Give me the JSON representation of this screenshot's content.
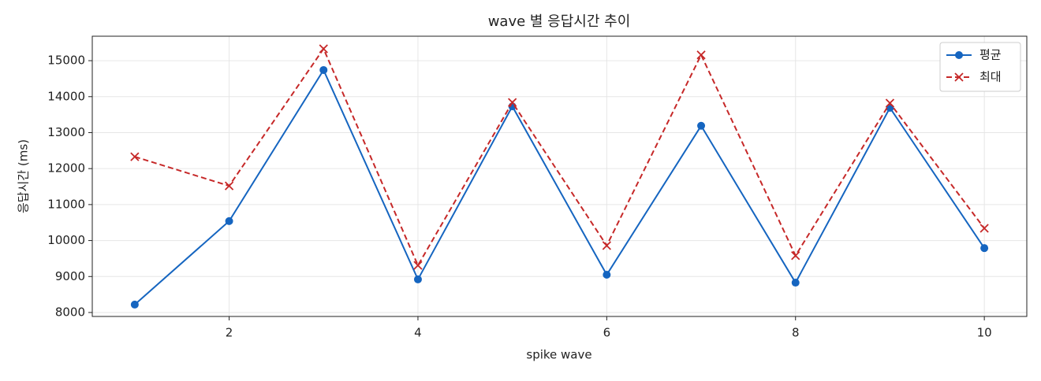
{
  "chart_data": {
    "type": "line",
    "title": "wave 별 응답시간 추이",
    "x_label": "spike wave",
    "y_label": "응답시간 (ms)",
    "x": [
      1,
      2,
      3,
      4,
      5,
      6,
      7,
      8,
      9,
      10
    ],
    "series": [
      {
        "name": "평균",
        "color": "#1565c0",
        "marker": "circle",
        "dash": "solid",
        "values": [
          8220,
          10540,
          14740,
          8920,
          13730,
          9050,
          13190,
          8830,
          13690,
          9790
        ]
      },
      {
        "name": "최대",
        "color": "#c62828",
        "marker": "x",
        "dash": "dashed",
        "values": [
          12330,
          11520,
          15330,
          9310,
          13840,
          9860,
          15160,
          9580,
          13820,
          10340
        ]
      }
    ],
    "xlim": [
      0.55,
      10.45
    ],
    "xticks": [
      2,
      4,
      6,
      8,
      10
    ],
    "ylim": [
      7890,
      15680
    ],
    "yticks": [
      8000,
      9000,
      10000,
      11000,
      12000,
      13000,
      14000,
      15000
    ],
    "grid": true,
    "legend": "upper right"
  }
}
